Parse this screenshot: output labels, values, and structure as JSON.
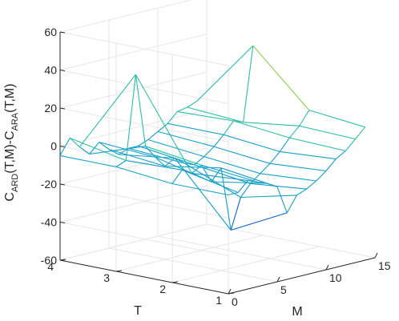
{
  "chart_data": {
    "type": "mesh3d",
    "zlabel_parts": [
      "C",
      "ARD",
      "(T,M)-C",
      "ARA",
      "(T,M)"
    ],
    "xlabel": "M",
    "ylabel": "T",
    "xlim": [
      0,
      15
    ],
    "ylim": [
      1,
      4
    ],
    "zlim": [
      -60,
      60
    ],
    "x_ticks": [
      0,
      5,
      10,
      15
    ],
    "y_ticks": [
      1,
      2,
      3,
      4
    ],
    "z_ticks": [
      -60,
      -40,
      -20,
      0,
      20,
      40,
      60
    ],
    "x_tick_labels": [
      "0",
      "5",
      "10",
      "15"
    ],
    "y_tick_labels": [
      "1",
      "2",
      "3",
      "4"
    ],
    "z_tick_labels": [
      "-60",
      "-40",
      "-20",
      "0",
      "20",
      "40",
      "60"
    ],
    "grid": true,
    "colormap": [
      "#0a5fd0",
      "#14a0c8",
      "#2bbfa5",
      "#8dce4c"
    ],
    "M": [
      0,
      1,
      2,
      3,
      4,
      5,
      6,
      7,
      8,
      9,
      10,
      11,
      12,
      13,
      14
    ],
    "T": [
      1,
      2,
      3,
      4
    ],
    "Z": [
      [
        -8,
        -8,
        -3,
        -5,
        -7,
        -10,
        -25,
        -17,
        -15,
        -12,
        -8,
        -3,
        0,
        5,
        10
      ],
      [
        -8,
        -2,
        -5,
        -2,
        -12,
        -6,
        -40,
        -24,
        -18,
        -14,
        -10,
        -5,
        1,
        6,
        13
      ],
      [
        -5,
        -3,
        41,
        2,
        -5,
        -11,
        -8,
        -12,
        -14,
        -11,
        -7,
        -2,
        4,
        2,
        41
      ],
      [
        -5,
        3,
        -3,
        -8,
        -3,
        -8,
        -12,
        -10,
        -10,
        -8,
        -5,
        -2,
        3,
        4,
        6
      ]
    ]
  }
}
